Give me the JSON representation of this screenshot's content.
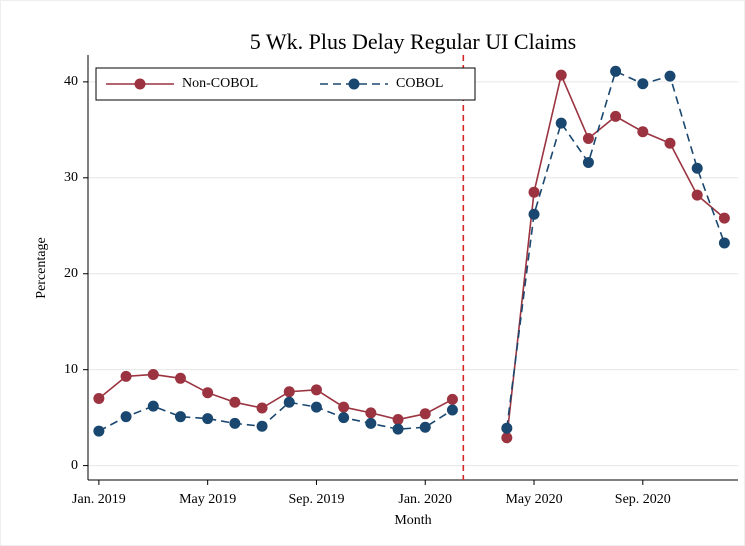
{
  "chart_data": {
    "type": "line",
    "title": "5 Wk. Plus Delay Regular UI Claims",
    "x_label": "Month",
    "y_label": "Percentage",
    "categories": [
      "Jan. 2019",
      null,
      null,
      null,
      "May 2019",
      null,
      null,
      null,
      "Sep. 2019",
      null,
      null,
      null,
      "Jan. 2020",
      null,
      null,
      null,
      "May 2020",
      null,
      null,
      null,
      "Sep. 2020",
      null,
      null,
      null
    ],
    "series": [
      {
        "name": "Non-COBOL",
        "color": "#9b3440",
        "dashed": false,
        "values": [
          7.0,
          9.3,
          9.5,
          9.1,
          7.6,
          6.6,
          6.0,
          7.7,
          7.9,
          6.1,
          5.5,
          4.8,
          5.4,
          6.9,
          null,
          2.9,
          28.5,
          40.7,
          34.1,
          36.4,
          34.8,
          33.6,
          28.2,
          25.8
        ]
      },
      {
        "name": "COBOL",
        "color": "#1a476f",
        "dashed": true,
        "values": [
          3.6,
          5.1,
          6.2,
          5.1,
          4.9,
          4.4,
          4.1,
          6.6,
          6.1,
          5.0,
          4.4,
          3.8,
          4.0,
          5.8,
          null,
          3.9,
          26.2,
          35.7,
          31.6,
          41.1,
          39.8,
          40.6,
          31.0,
          23.2
        ]
      }
    ],
    "reference_line": {
      "x": 13.4,
      "color": "#d62728"
    },
    "ylim": [
      -1.5,
      42.8
    ],
    "yticks": [
      0,
      10,
      20,
      30,
      40
    ],
    "grid": true,
    "legend": "top-left"
  }
}
